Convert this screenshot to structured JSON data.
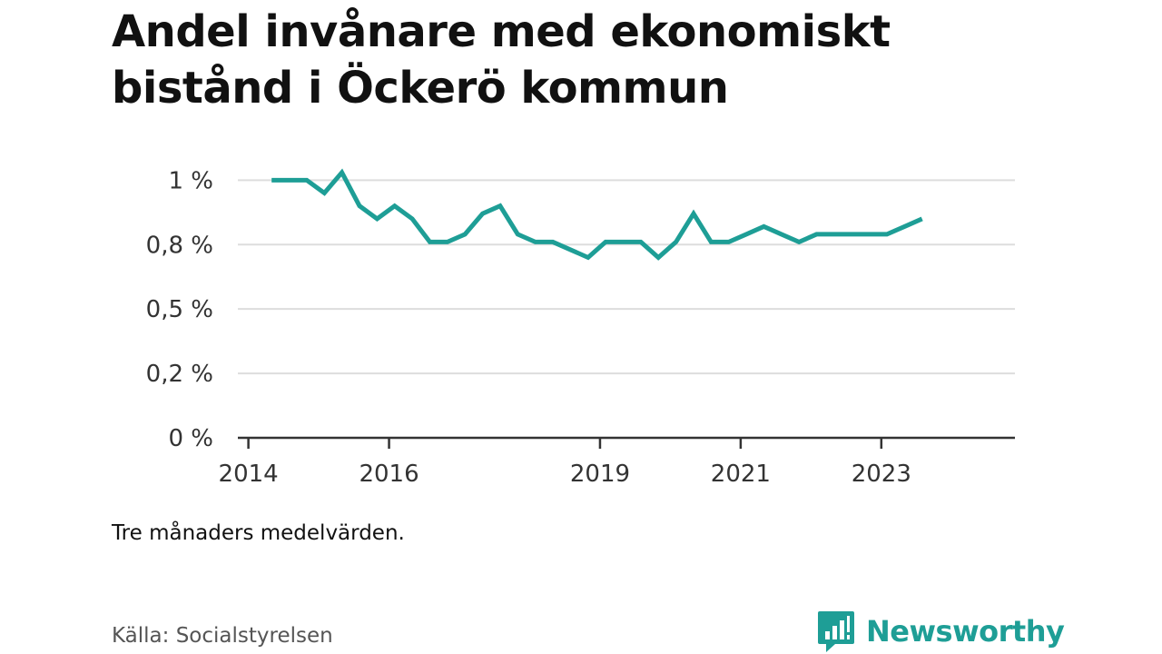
{
  "header": {
    "title": "Andel invånare med ekonomiskt bistånd i Öckerö kommun"
  },
  "footer": {
    "note": "Tre månaders medelvärden.",
    "source": "Källa: Socialstyrelsen",
    "brand": "Newsworthy"
  },
  "colors": {
    "line": "#1e9e96",
    "grid": "#dddddd",
    "axis": "#333333",
    "brand": "#1e9e96"
  },
  "chart_data": {
    "type": "line",
    "title": "Andel invånare med ekonomiskt bistånd i Öckerö kommun",
    "xlabel": "",
    "ylabel": "",
    "xlim": [
      2013.85,
      2024.9
    ],
    "ylim": [
      0,
      1.1
    ],
    "y_ticks": [
      {
        "value": 0,
        "label": "0 %"
      },
      {
        "value": 0.25,
        "label": "0,2 %"
      },
      {
        "value": 0.5,
        "label": "0,5 %"
      },
      {
        "value": 0.75,
        "label": "0,8 %"
      },
      {
        "value": 1.0,
        "label": "1 %"
      }
    ],
    "x_ticks": [
      {
        "value": 2014,
        "label": "2014"
      },
      {
        "value": 2016,
        "label": "2016"
      },
      {
        "value": 2019,
        "label": "2019"
      },
      {
        "value": 2021,
        "label": "2021"
      },
      {
        "value": 2023,
        "label": "2023"
      }
    ],
    "grid": true,
    "legend": "none",
    "series": [
      {
        "x": [
          2014.33,
          2014.58,
          2014.83,
          2015.08,
          2015.33,
          2015.58,
          2015.83,
          2016.08,
          2016.33,
          2016.58,
          2016.83,
          2017.08,
          2017.33,
          2017.58,
          2017.83,
          2018.08,
          2018.33,
          2018.58,
          2018.83,
          2019.08,
          2019.33,
          2019.58,
          2019.83,
          2020.08,
          2020.33,
          2020.58,
          2020.83,
          2021.08,
          2021.33,
          2021.58,
          2021.83,
          2022.08,
          2022.33,
          2022.58,
          2022.83,
          2023.08,
          2023.33,
          2023.58
        ],
        "values": [
          1.0,
          1.0,
          1.0,
          0.95,
          1.03,
          0.9,
          0.85,
          0.9,
          0.85,
          0.76,
          0.76,
          0.79,
          0.87,
          0.9,
          0.79,
          0.76,
          0.76,
          0.73,
          0.7,
          0.76,
          0.76,
          0.76,
          0.7,
          0.76,
          0.87,
          0.76,
          0.76,
          0.79,
          0.82,
          0.79,
          0.76,
          0.79,
          0.79,
          0.79,
          0.79,
          0.79,
          0.82,
          0.85
        ]
      }
    ]
  }
}
